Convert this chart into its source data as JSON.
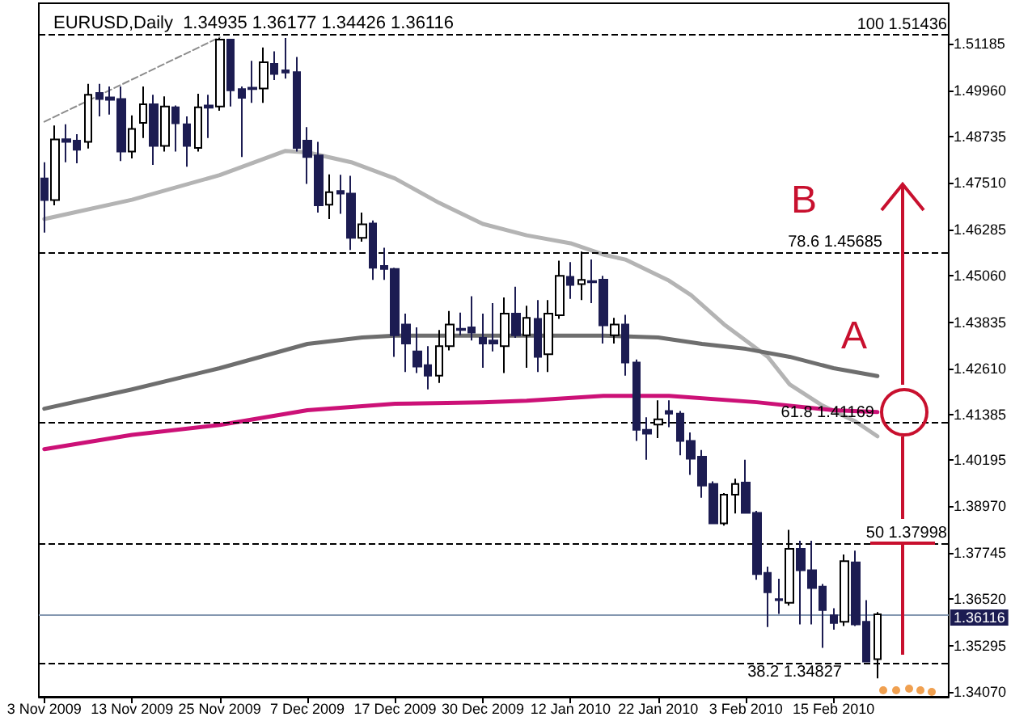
{
  "chart_data": {
    "type": "candlestick",
    "title": "EURUSD,Daily  1.34935 1.36177 1.34426 1.36116",
    "categories": [
      "3 Nov 2009",
      null,
      null,
      null,
      null,
      null,
      null,
      null,
      "13 Nov 2009",
      null,
      null,
      null,
      null,
      null,
      null,
      null,
      "25 Nov 2009",
      null,
      null,
      null,
      null,
      null,
      null,
      null,
      "7 Dec 2009",
      null,
      null,
      null,
      null,
      null,
      null,
      null,
      "17 Dec 2009",
      null,
      null,
      null,
      null,
      null,
      null,
      null,
      "30 Dec 2009",
      null,
      null,
      null,
      null,
      null,
      null,
      null,
      "12 Jan 2010",
      null,
      null,
      null,
      null,
      null,
      null,
      null,
      "22 Jan 2010",
      null,
      null,
      null,
      null,
      null,
      null,
      null,
      "3 Feb 2010",
      null,
      null,
      null,
      null,
      null,
      null,
      null,
      "15 Feb 2010",
      null,
      null,
      null,
      null
    ],
    "series": [
      {
        "type": "candlestick",
        "colors": [
          "#1c1c52",
          "#ffffff",
          "#1c1c52",
          "#1c1c52",
          "#ffffff",
          "#1c1c52",
          "#1c1c52",
          "#1c1c52",
          "#ffffff",
          "#ffffff",
          "#1c1c52",
          "#ffffff",
          "#1c1c52",
          "#1c1c52",
          "#ffffff",
          "#1c1c52",
          "#ffffff",
          "#1c1c52",
          "#1c1c52",
          "#1c1c52",
          "#ffffff",
          "#1c1c52",
          "#1c1c52",
          "#1c1c52",
          "#1c1c52",
          "#1c1c52",
          "#ffffff",
          "#1c1c52",
          "#1c1c52",
          "#ffffff",
          "#1c1c52",
          "#1c1c52",
          "#1c1c52",
          "#1c1c52",
          "#1c1c52",
          "#1c1c52",
          "#ffffff",
          "#ffffff",
          "#1c1c52",
          "#1c1c52",
          "#1c1c52",
          "#1c1c52",
          "#ffffff",
          "#1c1c52",
          "#ffffff",
          "#1c1c52",
          "#ffffff",
          "#ffffff",
          "#1c1c52",
          "#ffffff",
          "#1c1c52",
          "#1c1c52",
          "#ffffff",
          "#1c1c52",
          "#1c1c52",
          "#1c1c52",
          "#ffffff",
          "#1c1c52",
          "#1c1c52",
          "#1c1c52",
          "#1c1c52",
          "#1c1c52",
          "#ffffff",
          "#ffffff",
          "#1c1c52",
          "#1c1c52",
          "#1c1c52",
          "#1c1c52",
          "#ffffff",
          "#1c1c52",
          "#1c1c52",
          "#1c1c52",
          "#1c1c52",
          "#ffffff",
          "#1c1c52",
          "#1c1c52",
          "#ffffff"
        ],
        "ohlc": [
          [
            1.4763,
            1.4806,
            1.462,
            1.4706
          ],
          [
            1.4706,
            1.4903,
            1.4692,
            1.4866
          ],
          [
            1.4867,
            1.4906,
            1.4806,
            1.486
          ],
          [
            1.4863,
            1.488,
            1.4803,
            1.4839
          ],
          [
            1.486,
            1.5013,
            1.4842,
            1.4984
          ],
          [
            1.4989,
            1.5013,
            1.4927,
            1.4973
          ],
          [
            1.4977,
            1.5006,
            1.4932,
            1.4971
          ],
          [
            1.4973,
            1.5006,
            1.4809,
            1.4834
          ],
          [
            1.4834,
            1.493,
            1.4816,
            1.4894
          ],
          [
            1.491,
            1.5006,
            1.487,
            1.4959
          ],
          [
            1.4959,
            1.4984,
            1.4799,
            1.4849
          ],
          [
            1.4849,
            1.498,
            1.4834,
            1.4953
          ],
          [
            1.4951,
            1.4956,
            1.4834,
            1.4909
          ],
          [
            1.4906,
            1.4927,
            1.4794,
            1.4849
          ],
          [
            1.4844,
            1.4987,
            1.4834,
            1.4951
          ],
          [
            1.4956,
            1.4984,
            1.487,
            1.495
          ],
          [
            1.4953,
            1.5134,
            1.4942,
            1.513
          ],
          [
            1.513,
            1.5132,
            1.4953,
            1.4996
          ],
          [
            1.4999,
            1.5006,
            1.482,
            1.4976
          ],
          [
            1.5003,
            1.5074,
            1.4963,
            1.4999
          ],
          [
            1.5001,
            1.5109,
            1.4963,
            1.507
          ],
          [
            1.5066,
            1.5099,
            1.5023,
            1.5039
          ],
          [
            1.5049,
            1.5134,
            1.5027,
            1.5043
          ],
          [
            1.5044,
            1.5084,
            1.4834,
            1.4844
          ],
          [
            1.4863,
            1.4899,
            1.4749,
            1.482
          ],
          [
            1.4824,
            1.486,
            1.4673,
            1.4692
          ],
          [
            1.4694,
            1.4774,
            1.4656,
            1.4727
          ],
          [
            1.473,
            1.4773,
            1.467,
            1.4723
          ],
          [
            1.4723,
            1.477,
            1.4574,
            1.4606
          ],
          [
            1.4606,
            1.4673,
            1.4596,
            1.4642
          ],
          [
            1.4644,
            1.4652,
            1.4495,
            1.4527
          ],
          [
            1.4532,
            1.458,
            1.4495,
            1.4524
          ],
          [
            1.4524,
            1.4527,
            1.4292,
            1.4349
          ],
          [
            1.4377,
            1.4406,
            1.4252,
            1.4327
          ],
          [
            1.4306,
            1.437,
            1.4249,
            1.4266
          ],
          [
            1.427,
            1.432,
            1.4206,
            1.4242
          ],
          [
            1.4242,
            1.4363,
            1.4223,
            1.432
          ],
          [
            1.432,
            1.4413,
            1.4309,
            1.4377
          ],
          [
            1.4366,
            1.4409,
            1.4349,
            1.4363
          ],
          [
            1.437,
            1.4452,
            1.4335,
            1.4356
          ],
          [
            1.4342,
            1.4406,
            1.4263,
            1.4327
          ],
          [
            1.4335,
            1.4434,
            1.4306,
            1.4327
          ],
          [
            1.432,
            1.4449,
            1.4249,
            1.4406
          ],
          [
            1.4406,
            1.4477,
            1.4342,
            1.4349
          ],
          [
            1.4349,
            1.4427,
            1.4263,
            1.4395
          ],
          [
            1.4392,
            1.4442,
            1.4252,
            1.4292
          ],
          [
            1.4299,
            1.4442,
            1.4252,
            1.4406
          ],
          [
            1.4402,
            1.4546,
            1.4392,
            1.4506
          ],
          [
            1.4503,
            1.4542,
            1.4445,
            1.4482
          ],
          [
            1.4484,
            1.457,
            1.4442,
            1.4495
          ],
          [
            1.4492,
            1.4549,
            1.4434,
            1.4489
          ],
          [
            1.4496,
            1.4506,
            1.4327,
            1.4375
          ],
          [
            1.4349,
            1.4395,
            1.4327,
            1.4377
          ],
          [
            1.4377,
            1.4403,
            1.4242,
            1.4277
          ],
          [
            1.4277,
            1.4285,
            1.407,
            1.4099
          ],
          [
            1.4099,
            1.4132,
            1.402,
            1.4089
          ],
          [
            1.4113,
            1.4177,
            1.4077,
            1.4127
          ],
          [
            1.4149,
            1.4177,
            1.4106,
            1.4142
          ],
          [
            1.4142,
            1.4149,
            1.4032,
            1.407
          ],
          [
            1.407,
            1.4092,
            1.398,
            1.4023
          ],
          [
            1.4028,
            1.4046,
            1.392,
            1.3952
          ],
          [
            1.3956,
            1.3963,
            1.385,
            1.3852
          ],
          [
            1.3852,
            1.3932,
            1.3846,
            1.3928
          ],
          [
            1.3928,
            1.397,
            1.3878,
            1.3956
          ],
          [
            1.396,
            1.402,
            1.3878,
            1.388
          ],
          [
            1.388,
            1.3885,
            1.3703,
            1.3718
          ],
          [
            1.3721,
            1.3738,
            1.3578,
            1.367
          ],
          [
            1.3652,
            1.3706,
            1.3613,
            1.3649
          ],
          [
            1.3642,
            1.3835,
            1.3635,
            1.3785
          ],
          [
            1.3785,
            1.3806,
            1.3585,
            1.3728
          ],
          [
            1.3728,
            1.3806,
            1.3585,
            1.3681
          ],
          [
            1.3685,
            1.3692,
            1.3523,
            1.3623
          ],
          [
            1.3609,
            1.3628,
            1.3571,
            1.3589
          ],
          [
            1.3592,
            1.377,
            1.3581,
            1.3752
          ],
          [
            1.3749,
            1.378,
            1.3581,
            1.3585
          ],
          [
            1.3592,
            1.3649,
            1.3485,
            1.3487
          ],
          [
            1.34935,
            1.36177,
            1.34426,
            1.36116
          ]
        ]
      },
      {
        "type": "line",
        "color": "#b4b4b4",
        "line_style": "solid",
        "values": [
          1.4656,
          null,
          null,
          null,
          null,
          null,
          null,
          null,
          1.4707,
          null,
          null,
          null,
          null,
          null,
          null,
          null,
          1.4772,
          null,
          null,
          null,
          null,
          null,
          1.4836,
          null,
          1.4832,
          null,
          null,
          null,
          1.4806,
          null,
          null,
          null,
          1.4763,
          null,
          null,
          null,
          1.4699,
          null,
          null,
          null,
          1.4643,
          null,
          null,
          null,
          1.4613,
          null,
          null,
          null,
          1.4592,
          null,
          null,
          1.4562,
          null,
          1.4549,
          null,
          null,
          null,
          1.4493,
          null,
          1.4455,
          null,
          null,
          1.4378,
          null,
          null,
          null,
          1.4292,
          null,
          1.4219,
          null,
          null,
          1.4163,
          null,
          null,
          1.4121,
          null,
          1.4082
        ]
      },
      {
        "type": "line",
        "color": "#6e6e6e",
        "line_style": "solid",
        "values": [
          1.4155,
          null,
          null,
          null,
          null,
          null,
          null,
          null,
          1.4206,
          null,
          null,
          null,
          null,
          null,
          null,
          null,
          1.4262,
          null,
          null,
          null,
          null,
          null,
          null,
          null,
          1.4326,
          null,
          null,
          null,
          null,
          1.4343,
          null,
          null,
          1.4348,
          null,
          null,
          null,
          null,
          null,
          null,
          null,
          null,
          null,
          1.4348,
          null,
          null,
          null,
          null,
          null,
          null,
          null,
          null,
          1.4348,
          null,
          null,
          null,
          null,
          1.4343,
          null,
          null,
          null,
          1.4326,
          null,
          null,
          null,
          1.4313,
          null,
          null,
          null,
          1.4292,
          null,
          null,
          null,
          1.4262,
          null,
          null,
          null,
          1.4241
        ]
      },
      {
        "type": "line",
        "color": "#cc1177",
        "line_style": "solid",
        "values": [
          1.4048,
          null,
          null,
          null,
          null,
          null,
          null,
          null,
          1.4086,
          null,
          null,
          null,
          null,
          null,
          null,
          null,
          1.4112,
          null,
          null,
          null,
          null,
          null,
          null,
          null,
          1.4151,
          null,
          null,
          null,
          null,
          null,
          null,
          null,
          1.4168,
          null,
          null,
          null,
          null,
          null,
          null,
          null,
          1.4172,
          null,
          null,
          null,
          1.4176,
          null,
          null,
          null,
          null,
          null,
          null,
          1.4189,
          null,
          null,
          null,
          null,
          null,
          1.4189,
          null,
          null,
          null,
          null,
          null,
          null,
          null,
          1.4172,
          null,
          null,
          null,
          null,
          null,
          null,
          1.4151,
          null,
          null,
          null,
          1.4146
        ]
      },
      {
        "type": "line",
        "color": "#8c8c8c",
        "line_style": "dashed",
        "values": [
          1.4913,
          null,
          null,
          null,
          null,
          null,
          null,
          null,
          null,
          null,
          null,
          null,
          null,
          null,
          null,
          null,
          1.5136,
          null,
          null,
          null,
          null,
          null,
          null,
          null,
          null,
          null,
          null,
          null,
          null,
          null,
          null,
          null,
          null,
          null,
          null,
          null,
          null,
          null,
          null,
          null,
          null,
          null,
          null,
          null,
          null,
          null,
          null,
          null,
          null,
          null,
          null,
          null,
          null,
          null,
          null,
          null,
          null,
          null,
          null,
          null,
          null,
          null,
          null,
          null,
          null,
          null,
          null,
          null,
          null,
          null,
          null,
          null,
          null,
          null,
          null,
          null,
          null
        ]
      }
    ],
    "ylim": [
      1.3394,
      1.5226
    ],
    "yticks": [
      1.51185,
      {
        "value": 1.4996,
        "label": "1.49960"
      },
      1.48735,
      {
        "value": 1.4751,
        "label": "1.47510"
      },
      1.46285,
      {
        "value": 1.4506,
        "label": "1.45060"
      },
      1.43835,
      {
        "value": 1.4261,
        "label": "1.42610"
      },
      1.41385,
      1.40195,
      {
        "value": 1.3897,
        "label": "1.38970"
      },
      1.37745,
      {
        "value": 1.3652,
        "label": "1.36520"
      },
      1.35295,
      {
        "value": 1.3407,
        "label": "1.34070"
      }
    ],
    "ref_lines": [
      {
        "axis": "y",
        "value": 1.51436,
        "label": "100 1.51436",
        "color": "#000000",
        "line_style": "dashed"
      },
      {
        "axis": "y",
        "value": 1.45685,
        "label": "78.6 1.45685",
        "color": "#000000",
        "line_style": "dashed"
      },
      {
        "axis": "y",
        "value": 1.41169,
        "label": "61.8 1.41169",
        "color": "#000000",
        "line_style": "dashed"
      },
      {
        "axis": "y",
        "value": 1.37998,
        "label": "50 1.37998",
        "color": "#000000",
        "line_style": "dashed"
      },
      {
        "axis": "y",
        "value": 1.34827,
        "label": "38.2 1.34827",
        "color": "#000000",
        "line_style": "dashed"
      },
      {
        "axis": "y",
        "value": 1.36116,
        "label": "1.36116",
        "color": "#8497b0",
        "line_style": "solid"
      }
    ],
    "annotations": [
      "B",
      "A"
    ],
    "marker": "none",
    "grid": false
  }
}
